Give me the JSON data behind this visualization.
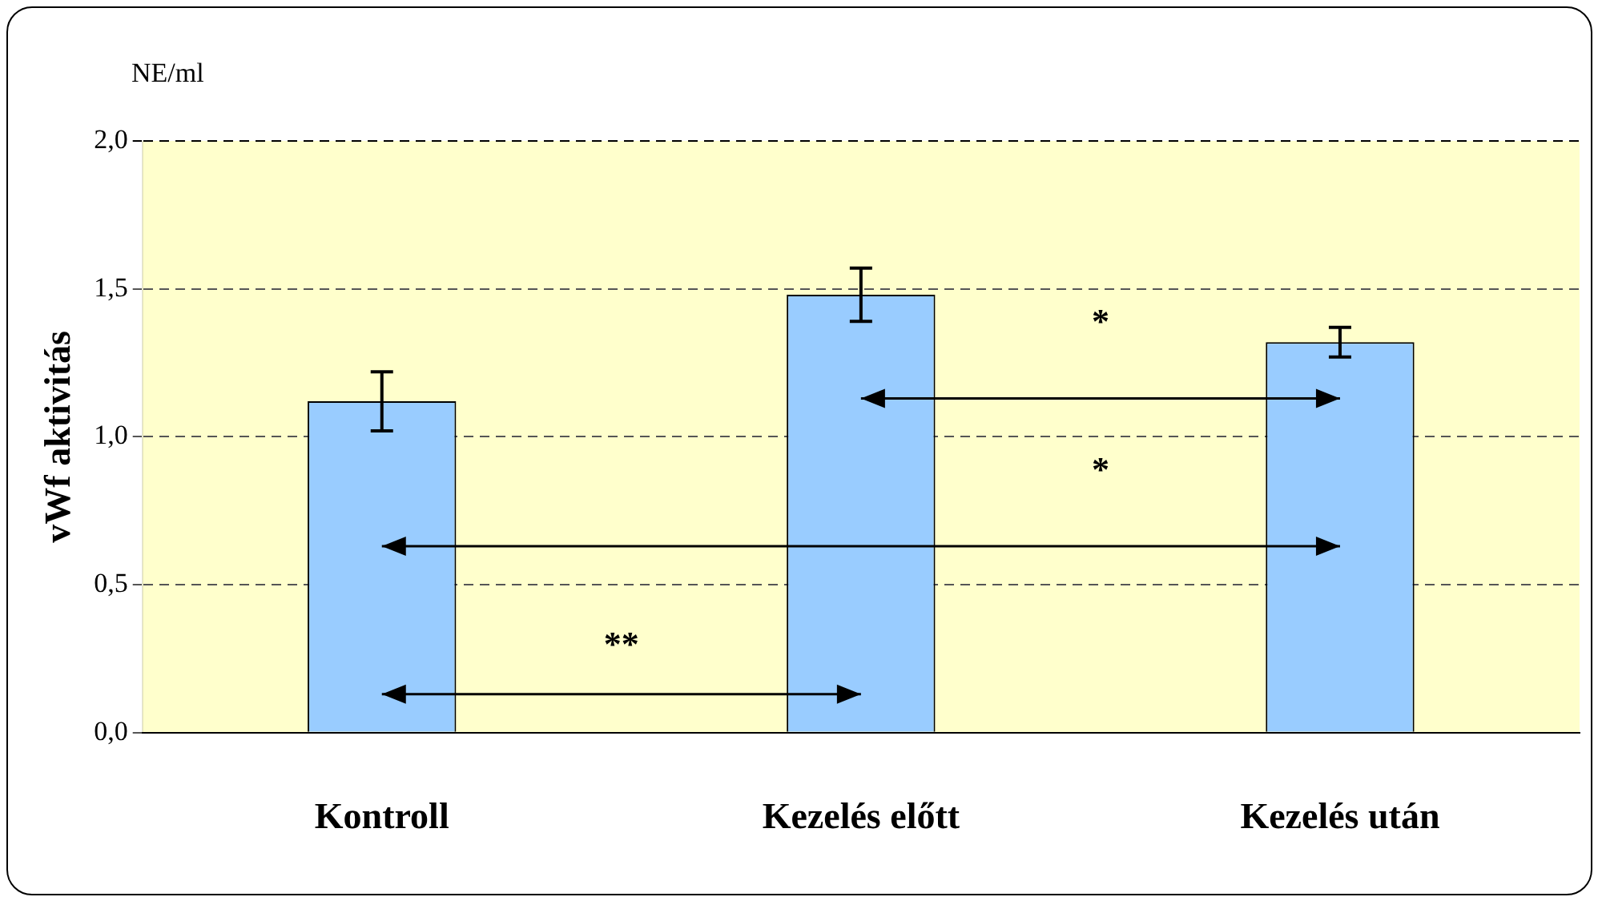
{
  "chart_data": {
    "type": "bar",
    "ylabel": "vWf aktivitás",
    "categories": [
      "Kontroll",
      "Kezelés előtt",
      "Kezelés után"
    ],
    "values": [
      1.12,
      1.48,
      1.32
    ],
    "errors": [
      0.1,
      0.09,
      0.05
    ],
    "color": "#99ccff",
    "ylim": [
      0,
      2
    ],
    "yticks": [
      {
        "value": 0,
        "label": "0,0"
      },
      {
        "value": 0.5,
        "label": "0,5"
      },
      {
        "value": 1,
        "label": "1,0"
      },
      {
        "value": 1.5,
        "label": "1,5"
      },
      {
        "value": 2,
        "label": "2,0"
      }
    ],
    "grid": "y",
    "annotations": [
      "NE/ml",
      "**",
      "*",
      "*"
    ]
  }
}
